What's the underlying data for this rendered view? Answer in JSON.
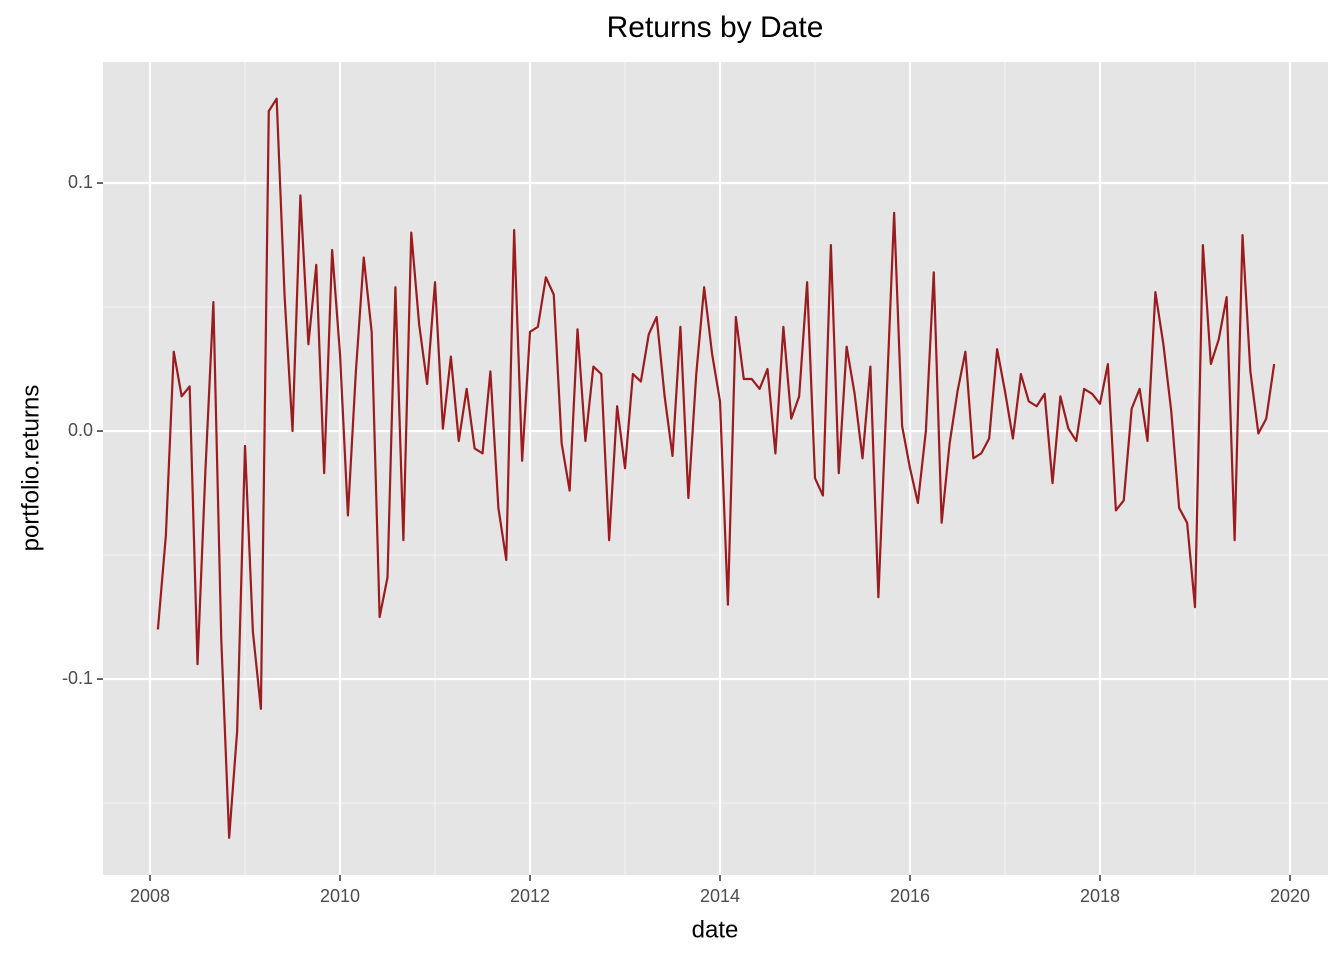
{
  "chart_data": {
    "type": "line",
    "title": "Returns by Date",
    "x_label": "date",
    "y_label": "portfolio.returns",
    "x": [
      2008.083,
      2008.167,
      2008.25,
      2008.333,
      2008.417,
      2008.5,
      2008.583,
      2008.667,
      2008.75,
      2008.833,
      2008.917,
      2009,
      2009.083,
      2009.167,
      2009.25,
      2009.333,
      2009.417,
      2009.5,
      2009.583,
      2009.667,
      2009.75,
      2009.833,
      2009.917,
      2010,
      2010.083,
      2010.167,
      2010.25,
      2010.333,
      2010.417,
      2010.5,
      2010.583,
      2010.667,
      2010.75,
      2010.833,
      2010.917,
      2011,
      2011.083,
      2011.167,
      2011.25,
      2011.333,
      2011.417,
      2011.5,
      2011.583,
      2011.667,
      2011.75,
      2011.833,
      2011.917,
      2012,
      2012.083,
      2012.167,
      2012.25,
      2012.333,
      2012.417,
      2012.5,
      2012.583,
      2012.667,
      2012.75,
      2012.833,
      2012.917,
      2013,
      2013.083,
      2013.167,
      2013.25,
      2013.333,
      2013.417,
      2013.5,
      2013.583,
      2013.667,
      2013.75,
      2013.833,
      2013.917,
      2014,
      2014.083,
      2014.167,
      2014.25,
      2014.333,
      2014.417,
      2014.5,
      2014.583,
      2014.667,
      2014.75,
      2014.833,
      2014.917,
      2015,
      2015.083,
      2015.167,
      2015.25,
      2015.333,
      2015.417,
      2015.5,
      2015.583,
      2015.667,
      2015.75,
      2015.833,
      2015.917,
      2016,
      2016.083,
      2016.167,
      2016.25,
      2016.333,
      2016.417,
      2016.5,
      2016.583,
      2016.667,
      2016.75,
      2016.833,
      2016.917,
      2017,
      2017.083,
      2017.167,
      2017.25,
      2017.333,
      2017.417,
      2017.5,
      2017.583,
      2017.667,
      2017.75,
      2017.833,
      2017.917,
      2018,
      2018.083,
      2018.167,
      2018.25,
      2018.333,
      2018.417,
      2018.5,
      2018.583,
      2018.667,
      2018.75,
      2018.833,
      2018.917,
      2019,
      2019.083,
      2019.167,
      2019.25,
      2019.333,
      2019.417,
      2019.5,
      2019.583,
      2019.667,
      2019.75,
      2019.833
    ],
    "series": [
      {
        "color": "#9b1b1f",
        "values": [
          -0.08,
          -0.042,
          0.032,
          0.014,
          0.018,
          -0.094,
          -0.016,
          0.052,
          -0.084,
          -0.164,
          -0.121,
          -0.006,
          -0.081,
          -0.112,
          0.129,
          0.134,
          0.054,
          0.0,
          0.095,
          0.035,
          0.067,
          -0.017,
          0.073,
          0.031,
          -0.034,
          0.024,
          0.07,
          0.04,
          -0.075,
          -0.059,
          0.058,
          -0.044,
          0.08,
          0.043,
          0.019,
          0.06,
          0.001,
          0.03,
          -0.004,
          0.017,
          -0.007,
          -0.009,
          0.024,
          -0.031,
          -0.052,
          0.081,
          -0.012,
          0.04,
          0.042,
          0.062,
          0.055,
          -0.005,
          -0.024,
          0.041,
          -0.004,
          0.026,
          0.023,
          -0.044,
          0.01,
          -0.015,
          0.023,
          0.02,
          0.039,
          0.046,
          0.014,
          -0.01,
          0.042,
          -0.027,
          0.023,
          0.058,
          0.031,
          0.012,
          -0.07,
          0.046,
          0.021,
          0.021,
          0.017,
          0.025,
          -0.009,
          0.042,
          0.005,
          0.014,
          0.06,
          -0.019,
          -0.026,
          0.075,
          -0.017,
          0.034,
          0.015,
          -0.011,
          0.026,
          -0.067,
          0.01,
          0.088,
          0.002,
          -0.015,
          -0.029,
          0.0,
          0.064,
          -0.037,
          -0.005,
          0.016,
          0.032,
          -0.011,
          -0.009,
          -0.003,
          0.033,
          0.016,
          -0.003,
          0.023,
          0.012,
          0.01,
          0.015,
          -0.021,
          0.014,
          0.001,
          -0.004,
          0.017,
          0.015,
          0.011,
          0.027,
          -0.032,
          -0.028,
          0.009,
          0.017,
          -0.004,
          0.056,
          0.035,
          0.008,
          -0.031,
          -0.037,
          -0.071,
          0.075,
          0.027,
          0.037,
          0.054,
          -0.044,
          0.079,
          0.024,
          -0.001,
          0.005,
          0.027
        ]
      }
    ],
    "xlim": [
      2007.505,
      2020.4
    ],
    "xticks": [
      2008,
      2010,
      2012,
      2014,
      2016,
      2018,
      2020
    ],
    "ylim": [
      -0.179,
      0.1488
    ],
    "yticks": [
      -0.1,
      {
        "value": 0,
        "label": "0.0"
      },
      0.1
    ],
    "grid": true
  }
}
